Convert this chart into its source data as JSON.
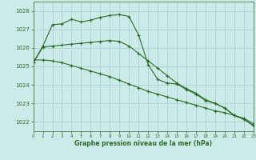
{
  "title": "Graphe pression niveau de la mer (hPa)",
  "background_color": "#cceae7",
  "grid_color": "#aad4d0",
  "line_color": "#2d6b2d",
  "x_min": 0,
  "x_max": 23,
  "y_min": 1021.5,
  "y_max": 1028.5,
  "y_ticks": [
    1022,
    1023,
    1024,
    1025,
    1026,
    1027,
    1028
  ],
  "x_ticks": [
    0,
    1,
    2,
    3,
    4,
    5,
    6,
    7,
    8,
    9,
    10,
    11,
    12,
    13,
    14,
    15,
    16,
    17,
    18,
    19,
    20,
    21,
    22,
    23
  ],
  "series": [
    {
      "x": [
        0,
        1,
        2,
        3,
        4,
        5,
        6,
        7,
        8,
        9,
        10,
        11,
        12,
        13,
        14,
        15,
        16,
        17,
        18,
        19,
        20,
        21,
        22,
        23
      ],
      "y": [
        1025.2,
        1026.1,
        1027.25,
        1027.3,
        1027.55,
        1027.4,
        1027.5,
        1027.65,
        1027.75,
        1027.8,
        1027.7,
        1026.7,
        1025.1,
        1024.3,
        1024.1,
        1024.05,
        1023.75,
        1023.5,
        1023.15,
        1023.0,
        1022.75,
        1022.35,
        1022.15,
        1021.8
      ],
      "marker": "+"
    },
    {
      "x": [
        0,
        1,
        2,
        3,
        4,
        5,
        6,
        7,
        8,
        9,
        10,
        11,
        12,
        13,
        14,
        15,
        16,
        17,
        18,
        19,
        20,
        21,
        22,
        23
      ],
      "y": [
        1025.2,
        1026.05,
        1026.1,
        1026.15,
        1026.2,
        1026.25,
        1026.3,
        1026.35,
        1026.4,
        1026.35,
        1026.1,
        1025.7,
        1025.3,
        1024.9,
        1024.5,
        1024.1,
        1023.8,
        1023.55,
        1023.2,
        1023.0,
        1022.75,
        1022.35,
        1022.15,
        1021.8
      ],
      "marker": "+"
    },
    {
      "x": [
        0,
        1,
        2,
        3,
        4,
        5,
        6,
        7,
        8,
        9,
        10,
        11,
        12,
        13,
        14,
        15,
        16,
        17,
        18,
        19,
        20,
        21,
        22,
        23
      ],
      "y": [
        1025.35,
        1025.35,
        1025.3,
        1025.2,
        1025.05,
        1024.9,
        1024.75,
        1024.6,
        1024.45,
        1024.25,
        1024.05,
        1023.85,
        1023.65,
        1023.5,
        1023.35,
        1023.2,
        1023.05,
        1022.9,
        1022.75,
        1022.6,
        1022.5,
        1022.35,
        1022.2,
        1021.9
      ],
      "marker": "+"
    }
  ]
}
